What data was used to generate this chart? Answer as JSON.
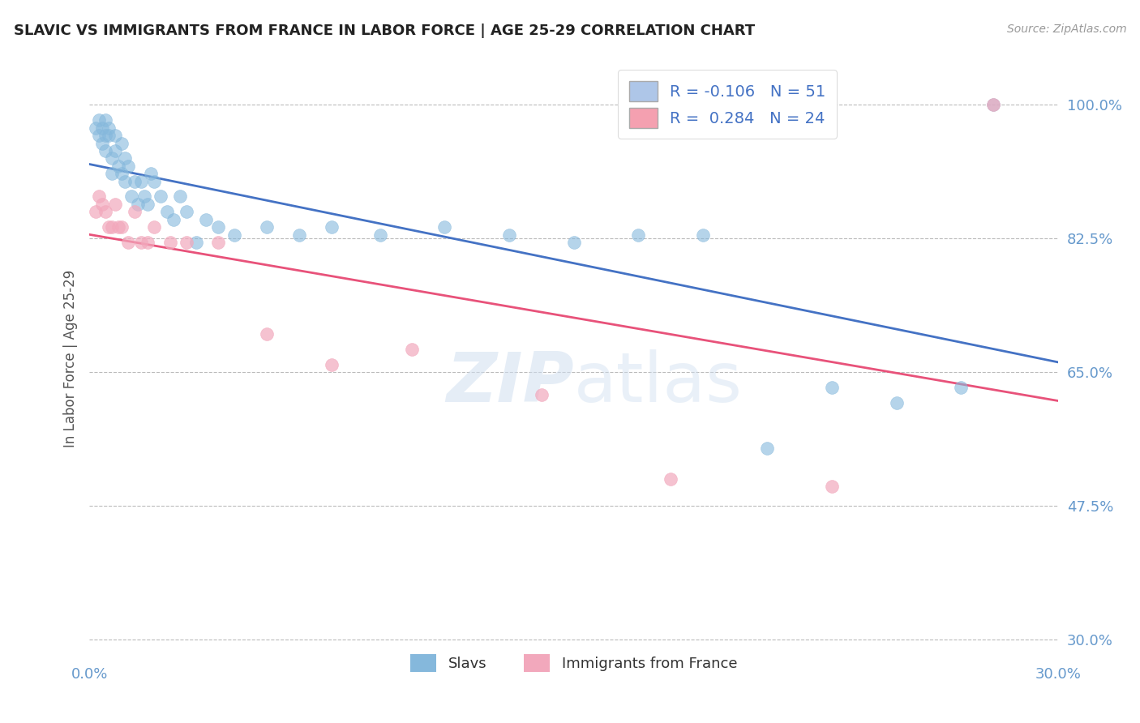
{
  "title": "SLAVIC VS IMMIGRANTS FROM FRANCE IN LABOR FORCE | AGE 25-29 CORRELATION CHART",
  "source": "Source: ZipAtlas.com",
  "ylabel": "In Labor Force | Age 25-29",
  "xlim": [
    0.0,
    0.3
  ],
  "ylim": [
    0.275,
    1.06
  ],
  "yticks": [
    0.3,
    0.475,
    0.65,
    0.825,
    1.0
  ],
  "ytick_labels": [
    "30.0%",
    "47.5%",
    "65.0%",
    "82.5%",
    "100.0%"
  ],
  "xtick_vals": [
    0.0,
    0.3
  ],
  "xtick_labels": [
    "0.0%",
    "30.0%"
  ],
  "slavs_x": [
    0.002,
    0.003,
    0.003,
    0.004,
    0.004,
    0.005,
    0.005,
    0.005,
    0.006,
    0.006,
    0.007,
    0.007,
    0.008,
    0.008,
    0.009,
    0.01,
    0.01,
    0.011,
    0.011,
    0.012,
    0.013,
    0.014,
    0.015,
    0.016,
    0.017,
    0.018,
    0.019,
    0.02,
    0.022,
    0.024,
    0.026,
    0.028,
    0.03,
    0.033,
    0.036,
    0.04,
    0.045,
    0.055,
    0.065,
    0.075,
    0.09,
    0.11,
    0.13,
    0.15,
    0.17,
    0.19,
    0.21,
    0.23,
    0.25,
    0.27,
    0.28
  ],
  "slavs_y": [
    0.97,
    0.98,
    0.96,
    0.97,
    0.95,
    0.98,
    0.96,
    0.94,
    0.97,
    0.96,
    0.91,
    0.93,
    0.96,
    0.94,
    0.92,
    0.95,
    0.91,
    0.93,
    0.9,
    0.92,
    0.88,
    0.9,
    0.87,
    0.9,
    0.88,
    0.87,
    0.91,
    0.9,
    0.88,
    0.86,
    0.85,
    0.88,
    0.86,
    0.82,
    0.85,
    0.84,
    0.83,
    0.84,
    0.83,
    0.84,
    0.83,
    0.84,
    0.83,
    0.82,
    0.83,
    0.83,
    0.55,
    0.63,
    0.61,
    0.63,
    1.0
  ],
  "france_x": [
    0.002,
    0.003,
    0.004,
    0.005,
    0.006,
    0.007,
    0.008,
    0.009,
    0.01,
    0.012,
    0.014,
    0.016,
    0.018,
    0.02,
    0.025,
    0.03,
    0.04,
    0.055,
    0.075,
    0.1,
    0.14,
    0.18,
    0.23,
    0.28
  ],
  "france_y": [
    0.86,
    0.88,
    0.87,
    0.86,
    0.84,
    0.84,
    0.87,
    0.84,
    0.84,
    0.82,
    0.86,
    0.82,
    0.82,
    0.84,
    0.82,
    0.82,
    0.82,
    0.7,
    0.66,
    0.68,
    0.62,
    0.51,
    0.5,
    1.0
  ],
  "slavs_R": -0.106,
  "slavs_N": 51,
  "france_R": 0.284,
  "france_N": 24,
  "slavs_color": "#85B8DC",
  "france_color": "#F2A8BC",
  "slavs_line_color": "#4472C4",
  "france_line_color": "#E8527A",
  "background_color": "#FFFFFF",
  "grid_color": "#BBBBBB",
  "tick_color": "#6699CC",
  "legend_box_color_slavs": "#AEC6E8",
  "legend_box_color_france": "#F4A0B0",
  "legend_text_color": "#4472C4",
  "watermark_color": "#D0DFF0"
}
